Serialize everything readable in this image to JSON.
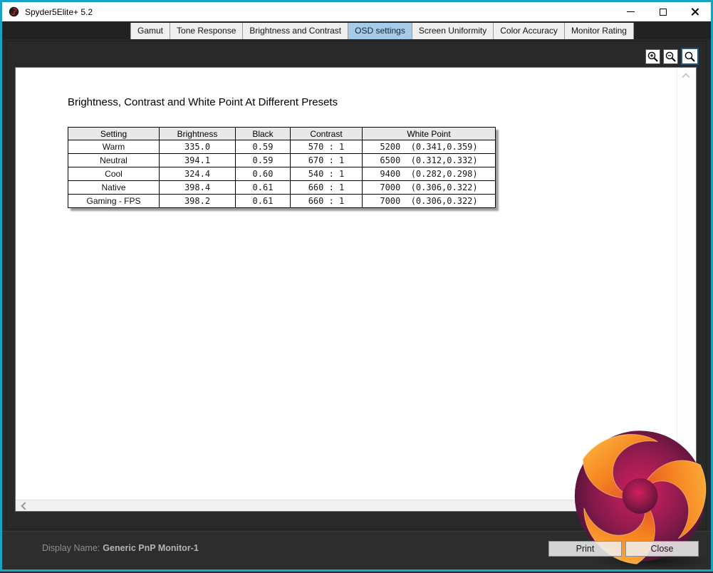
{
  "window": {
    "title": "Spyder5Elite+ 5.2"
  },
  "tabs": [
    {
      "slug": "gamut",
      "label": "Gamut",
      "selected": false
    },
    {
      "slug": "tone-response",
      "label": "Tone Response",
      "selected": false
    },
    {
      "slug": "brightness-and-contrast",
      "label": "Brightness and Contrast",
      "selected": false
    },
    {
      "slug": "osd-settings",
      "label": "OSD settings",
      "selected": true
    },
    {
      "slug": "screen-uniformity",
      "label": "Screen Uniformity",
      "selected": false
    },
    {
      "slug": "color-accuracy",
      "label": "Color Accuracy",
      "selected": false
    },
    {
      "slug": "monitor-rating",
      "label": "Monitor Rating",
      "selected": false
    }
  ],
  "toolbar": {
    "zoom_icons": [
      "zoom-in",
      "zoom-out",
      "zoom-reset"
    ],
    "selected": "zoom-reset"
  },
  "page": {
    "title": "Brightness, Contrast and White Point At Different Presets",
    "table": {
      "headers": [
        "Setting",
        "Brightness",
        "Black",
        "Contrast",
        "White Point"
      ],
      "rows": [
        [
          "Warm",
          "335.0",
          "0.59",
          "570 : 1",
          "5200  (0.341,0.359)"
        ],
        [
          "Neutral",
          "394.1",
          "0.59",
          "670 : 1",
          "6500  (0.312,0.332)"
        ],
        [
          "Cool",
          "324.4",
          "0.60",
          "540 : 1",
          "9400  (0.282,0.298)"
        ],
        [
          "Native",
          "398.4",
          "0.61",
          "660 : 1",
          "7000  (0.306,0.322)"
        ],
        [
          "Gaming - FPS",
          "398.2",
          "0.61",
          "660 : 1",
          "7000  (0.306,0.322)"
        ]
      ]
    }
  },
  "statusbar": {
    "display_name_label": "Display Name:",
    "display_name_value": "Generic PnP Monitor-1",
    "print_label": "Print",
    "close_label": "Close"
  },
  "colors": {
    "window_border": "#16a3c4",
    "tab_selected_bg": "#a6cbe9",
    "panel_bg": "#292929",
    "statusbar_bg": "#2d2d2d",
    "table_header_bg": "#e8e8e8",
    "zoom_selected_border": "#1c567d",
    "logo_orange": "#f7941e",
    "logo_red": "#e03a2f",
    "logo_magenta": "#c2175b",
    "logo_purple": "#471433"
  }
}
